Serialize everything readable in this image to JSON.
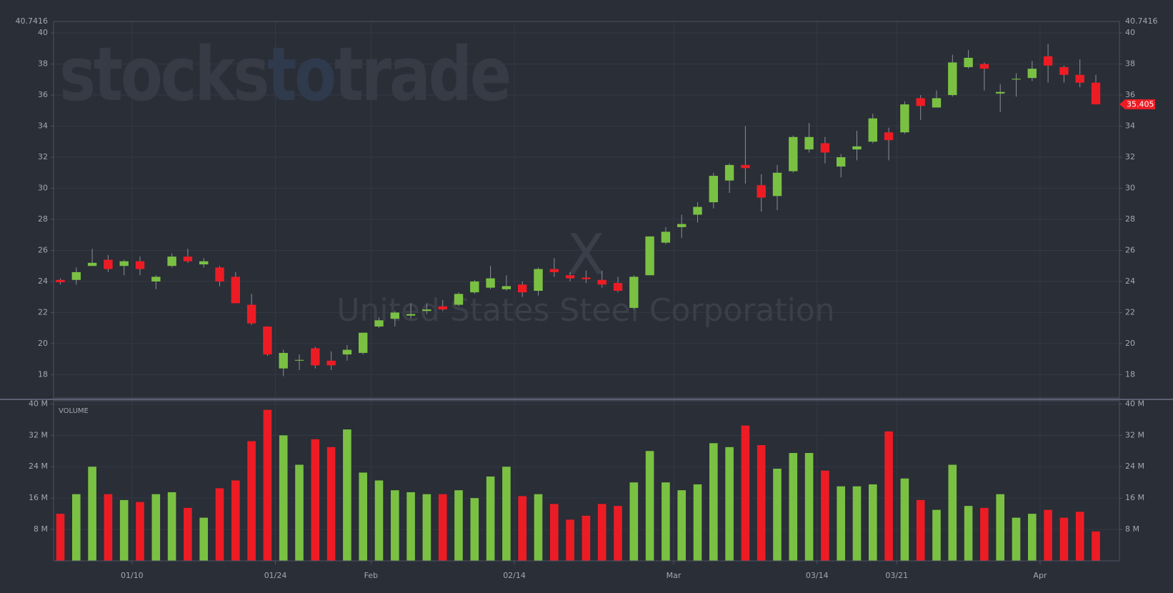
{
  "watermark": {
    "brand": [
      "stocks",
      "to",
      "trade"
    ],
    "symbol": "X",
    "company": "United States Steel Corporation"
  },
  "chart_data": [
    {
      "type": "candlestick",
      "categories": [
        null,
        null,
        null,
        null,
        null,
        "01/10",
        null,
        null,
        null,
        null,
        null,
        null,
        null,
        null,
        "01/24",
        null,
        null,
        null,
        null,
        null,
        "Feb",
        null,
        null,
        null,
        null,
        null,
        null,
        null,
        null,
        "02/14",
        null,
        null,
        null,
        null,
        null,
        null,
        null,
        null,
        null,
        "Mar",
        null,
        null,
        null,
        null,
        null,
        null,
        null,
        null,
        "03/14",
        null,
        null,
        null,
        null,
        "03/21",
        null,
        null,
        null,
        null,
        null,
        null,
        null,
        null,
        "Apr",
        null,
        null,
        null
      ],
      "open": [
        24.1,
        24.1,
        25.0,
        25.4,
        25.0,
        25.3,
        24.0,
        25.0,
        25.6,
        25.1,
        24.9,
        24.3,
        22.5,
        21.1,
        18.4,
        18.9,
        19.7,
        18.9,
        19.3,
        19.4,
        21.1,
        21.6,
        21.8,
        22.1,
        22.4,
        22.5,
        23.3,
        23.6,
        23.5,
        23.8,
        23.4,
        24.8,
        24.4,
        24.25,
        24.1,
        23.9,
        22.3,
        24.4,
        26.5,
        27.5,
        28.3,
        29.1,
        30.5,
        31.5,
        30.2,
        29.5,
        31.1,
        32.5,
        32.9,
        31.4,
        32.5,
        33.0,
        33.6,
        33.6,
        35.8,
        35.2,
        36.0,
        37.8,
        38.0,
        36.1,
        37.0,
        37.1,
        38.5,
        37.8,
        37.3,
        36.8
      ],
      "high": [
        24.2,
        24.9,
        26.1,
        25.7,
        25.4,
        25.6,
        24.4,
        25.8,
        26.1,
        25.5,
        25.0,
        24.6,
        23.2,
        21.1,
        19.6,
        19.3,
        19.8,
        19.5,
        19.9,
        20.7,
        21.7,
        22.1,
        22.6,
        22.6,
        22.8,
        23.3,
        24.1,
        25.0,
        24.4,
        24.0,
        24.9,
        25.5,
        24.6,
        24.7,
        24.7,
        24.3,
        24.4,
        26.9,
        27.5,
        28.3,
        29.1,
        31.0,
        31.6,
        34.0,
        30.9,
        31.5,
        33.4,
        34.2,
        33.3,
        32.2,
        33.7,
        34.8,
        33.9,
        35.6,
        36.0,
        36.3,
        38.6,
        38.9,
        38.1,
        36.7,
        37.4,
        38.2,
        39.3,
        37.9,
        38.3,
        37.3
      ],
      "low": [
        23.8,
        23.8,
        25.0,
        24.6,
        24.4,
        24.4,
        23.5,
        24.9,
        25.2,
        24.9,
        23.7,
        22.6,
        21.2,
        19.2,
        17.9,
        18.3,
        18.4,
        18.3,
        18.9,
        19.3,
        21.0,
        21.1,
        21.6,
        21.9,
        22.1,
        22.4,
        23.2,
        23.5,
        23.4,
        23.0,
        23.1,
        24.3,
        24.0,
        23.9,
        23.6,
        23.3,
        22.2,
        24.4,
        26.4,
        26.8,
        27.8,
        28.7,
        29.7,
        30.3,
        28.5,
        28.6,
        31.0,
        32.3,
        31.6,
        30.7,
        31.8,
        32.9,
        31.8,
        33.5,
        34.4,
        35.2,
        35.9,
        37.7,
        36.3,
        34.9,
        35.9,
        36.9,
        36.8,
        36.8,
        36.5,
        35.4
      ],
      "close": [
        23.95,
        24.6,
        25.2,
        24.8,
        25.3,
        24.8,
        24.3,
        25.6,
        25.3,
        25.3,
        24.0,
        22.6,
        21.3,
        19.3,
        19.4,
        18.95,
        18.6,
        18.6,
        19.6,
        20.7,
        21.5,
        22.0,
        21.9,
        22.2,
        22.2,
        23.2,
        24.0,
        24.2,
        23.7,
        23.3,
        24.8,
        24.6,
        24.2,
        24.15,
        23.8,
        23.4,
        24.3,
        26.9,
        27.2,
        27.7,
        28.8,
        30.8,
        31.5,
        31.3,
        29.4,
        31.0,
        33.3,
        33.3,
        32.3,
        32.0,
        32.7,
        34.5,
        33.1,
        35.4,
        35.3,
        35.8,
        38.1,
        38.4,
        37.7,
        36.2,
        37.05,
        37.7,
        37.9,
        37.3,
        36.8,
        35.405
      ],
      "up_color": "#7ac143",
      "down_color": "#ed1c24",
      "ylim": [
        16.5,
        40.7416
      ],
      "yticks": [
        18,
        20,
        22,
        24,
        26,
        28,
        30,
        32,
        34,
        36,
        38,
        40
      ],
      "grid": true
    },
    {
      "type": "bar",
      "title": "VOLUME",
      "values": [
        12,
        17,
        24,
        17,
        15.5,
        15,
        17,
        17.5,
        13.5,
        11,
        18.5,
        20.5,
        30.5,
        38.5,
        32,
        24.5,
        31,
        29,
        33.5,
        22.5,
        20.5,
        18,
        17.5,
        17,
        17,
        18,
        16,
        21.5,
        24,
        16.5,
        17,
        14.5,
        10.5,
        11.5,
        14.5,
        14,
        20,
        28,
        20,
        18,
        19.5,
        30,
        29,
        34.5,
        29.5,
        23.5,
        27.5,
        27.5,
        23,
        19,
        19,
        19.5,
        33,
        21,
        15.5,
        13,
        24.5,
        14,
        13.5,
        17,
        11,
        12,
        13,
        11,
        12.5,
        7.5
      ],
      "ylim": [
        0,
        40.8
      ],
      "yticks": [
        {
          "value": 8,
          "label": "8 M"
        },
        {
          "value": 16,
          "label": "16 M"
        },
        {
          "value": 24,
          "label": "24 M"
        },
        {
          "value": 32,
          "label": "32 M"
        },
        {
          "value": 40,
          "label": "40 M"
        }
      ],
      "grid": true
    }
  ]
}
